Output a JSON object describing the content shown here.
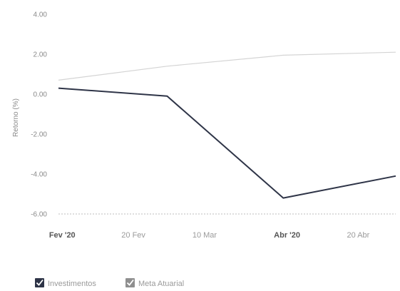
{
  "chart_data": {
    "type": "line",
    "ylabel": "Retorno (%)",
    "xlabel": "",
    "title": "",
    "ylim": [
      -6,
      4
    ],
    "yticks": [
      "4.00",
      "2.00",
      "0.00",
      "-2.00",
      "-4.00",
      "-6.00"
    ],
    "ytick_values": [
      4,
      2,
      0,
      -2,
      -4,
      -6
    ],
    "xlim": [
      "2020-01-31",
      "2020-04-30"
    ],
    "xticks": [
      {
        "label": "Fev '20",
        "date": "2020-02-01",
        "major": true
      },
      {
        "label": "20 Fev",
        "date": "2020-02-20",
        "major": false
      },
      {
        "label": "10 Mar",
        "date": "2020-03-10",
        "major": false
      },
      {
        "label": "Abr '20",
        "date": "2020-04-01",
        "major": true
      },
      {
        "label": "20 Abr",
        "date": "2020-04-20",
        "major": false
      }
    ],
    "grid": false,
    "legend_position": "bottom-left",
    "series": [
      {
        "name": "Investimentos",
        "color": "#2e3447",
        "points": [
          {
            "x": "2020-01-31",
            "y": 0.3
          },
          {
            "x": "2020-02-29",
            "y": -0.1
          },
          {
            "x": "2020-03-31",
            "y": -5.2
          },
          {
            "x": "2020-04-30",
            "y": -4.1
          }
        ]
      },
      {
        "name": "Meta Atuarial",
        "color": "#d4d4d4",
        "points": [
          {
            "x": "2020-01-31",
            "y": 0.7
          },
          {
            "x": "2020-02-29",
            "y": 1.4
          },
          {
            "x": "2020-03-31",
            "y": 1.95
          },
          {
            "x": "2020-04-30",
            "y": 2.1
          }
        ]
      }
    ]
  }
}
